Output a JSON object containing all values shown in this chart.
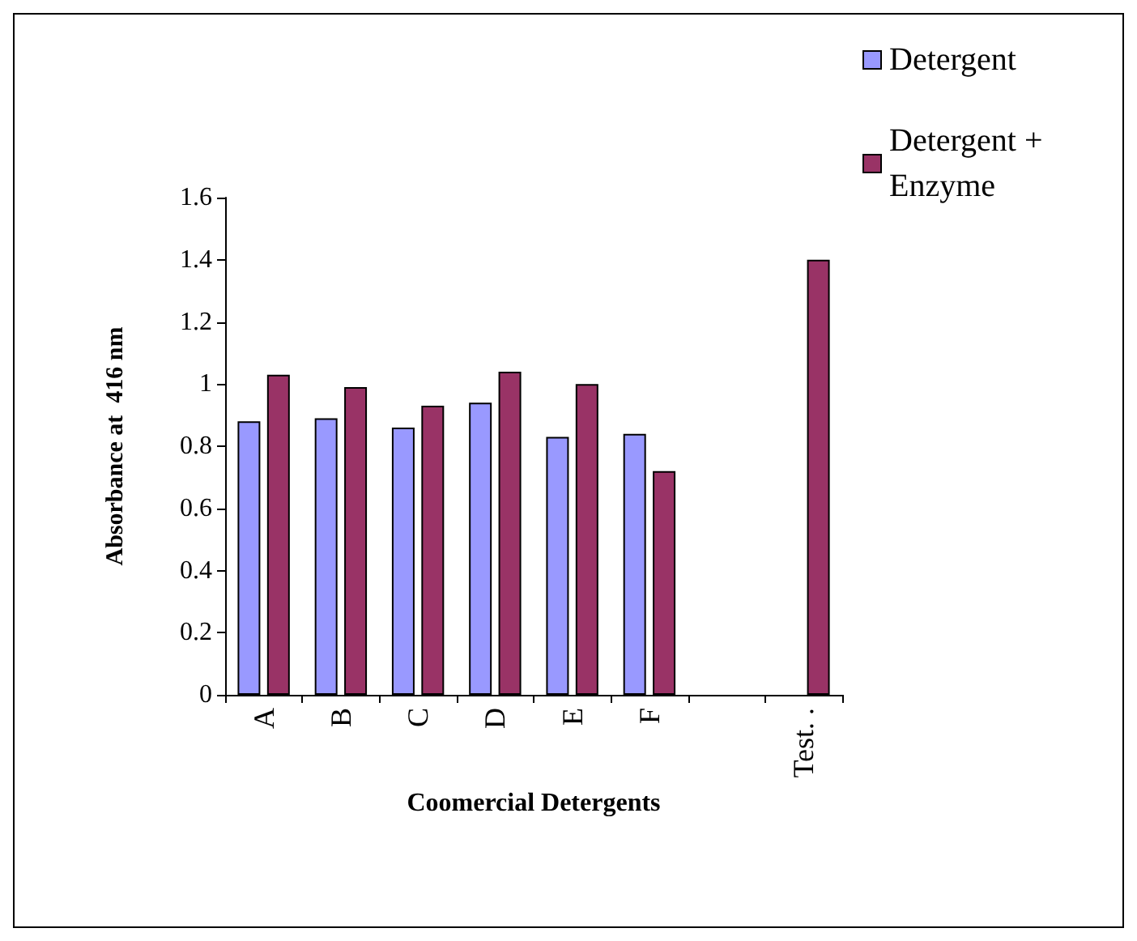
{
  "chart_data": {
    "type": "bar",
    "xlabel": "Coomercial Detergents",
    "ylabel": "Absorbance at  416 nm",
    "categories": [
      "A",
      "B",
      "C",
      "D",
      "E",
      "F",
      null,
      "Test. ."
    ],
    "series": [
      {
        "name": "Detergent",
        "color": "#9999ff",
        "values": [
          0.88,
          0.89,
          0.86,
          0.94,
          0.83,
          0.84,
          null,
          null
        ]
      },
      {
        "name": "Detergent + Enzyme",
        "color": "#993366",
        "values": [
          1.03,
          0.99,
          0.93,
          1.04,
          1.0,
          0.72,
          null,
          1.4
        ]
      }
    ],
    "ylim": [
      0,
      1.6
    ],
    "yticks": [
      0,
      0.2,
      0.4,
      0.6,
      0.8,
      1,
      1.2,
      1.4,
      1.6
    ],
    "grid": false,
    "legend": "top right"
  }
}
